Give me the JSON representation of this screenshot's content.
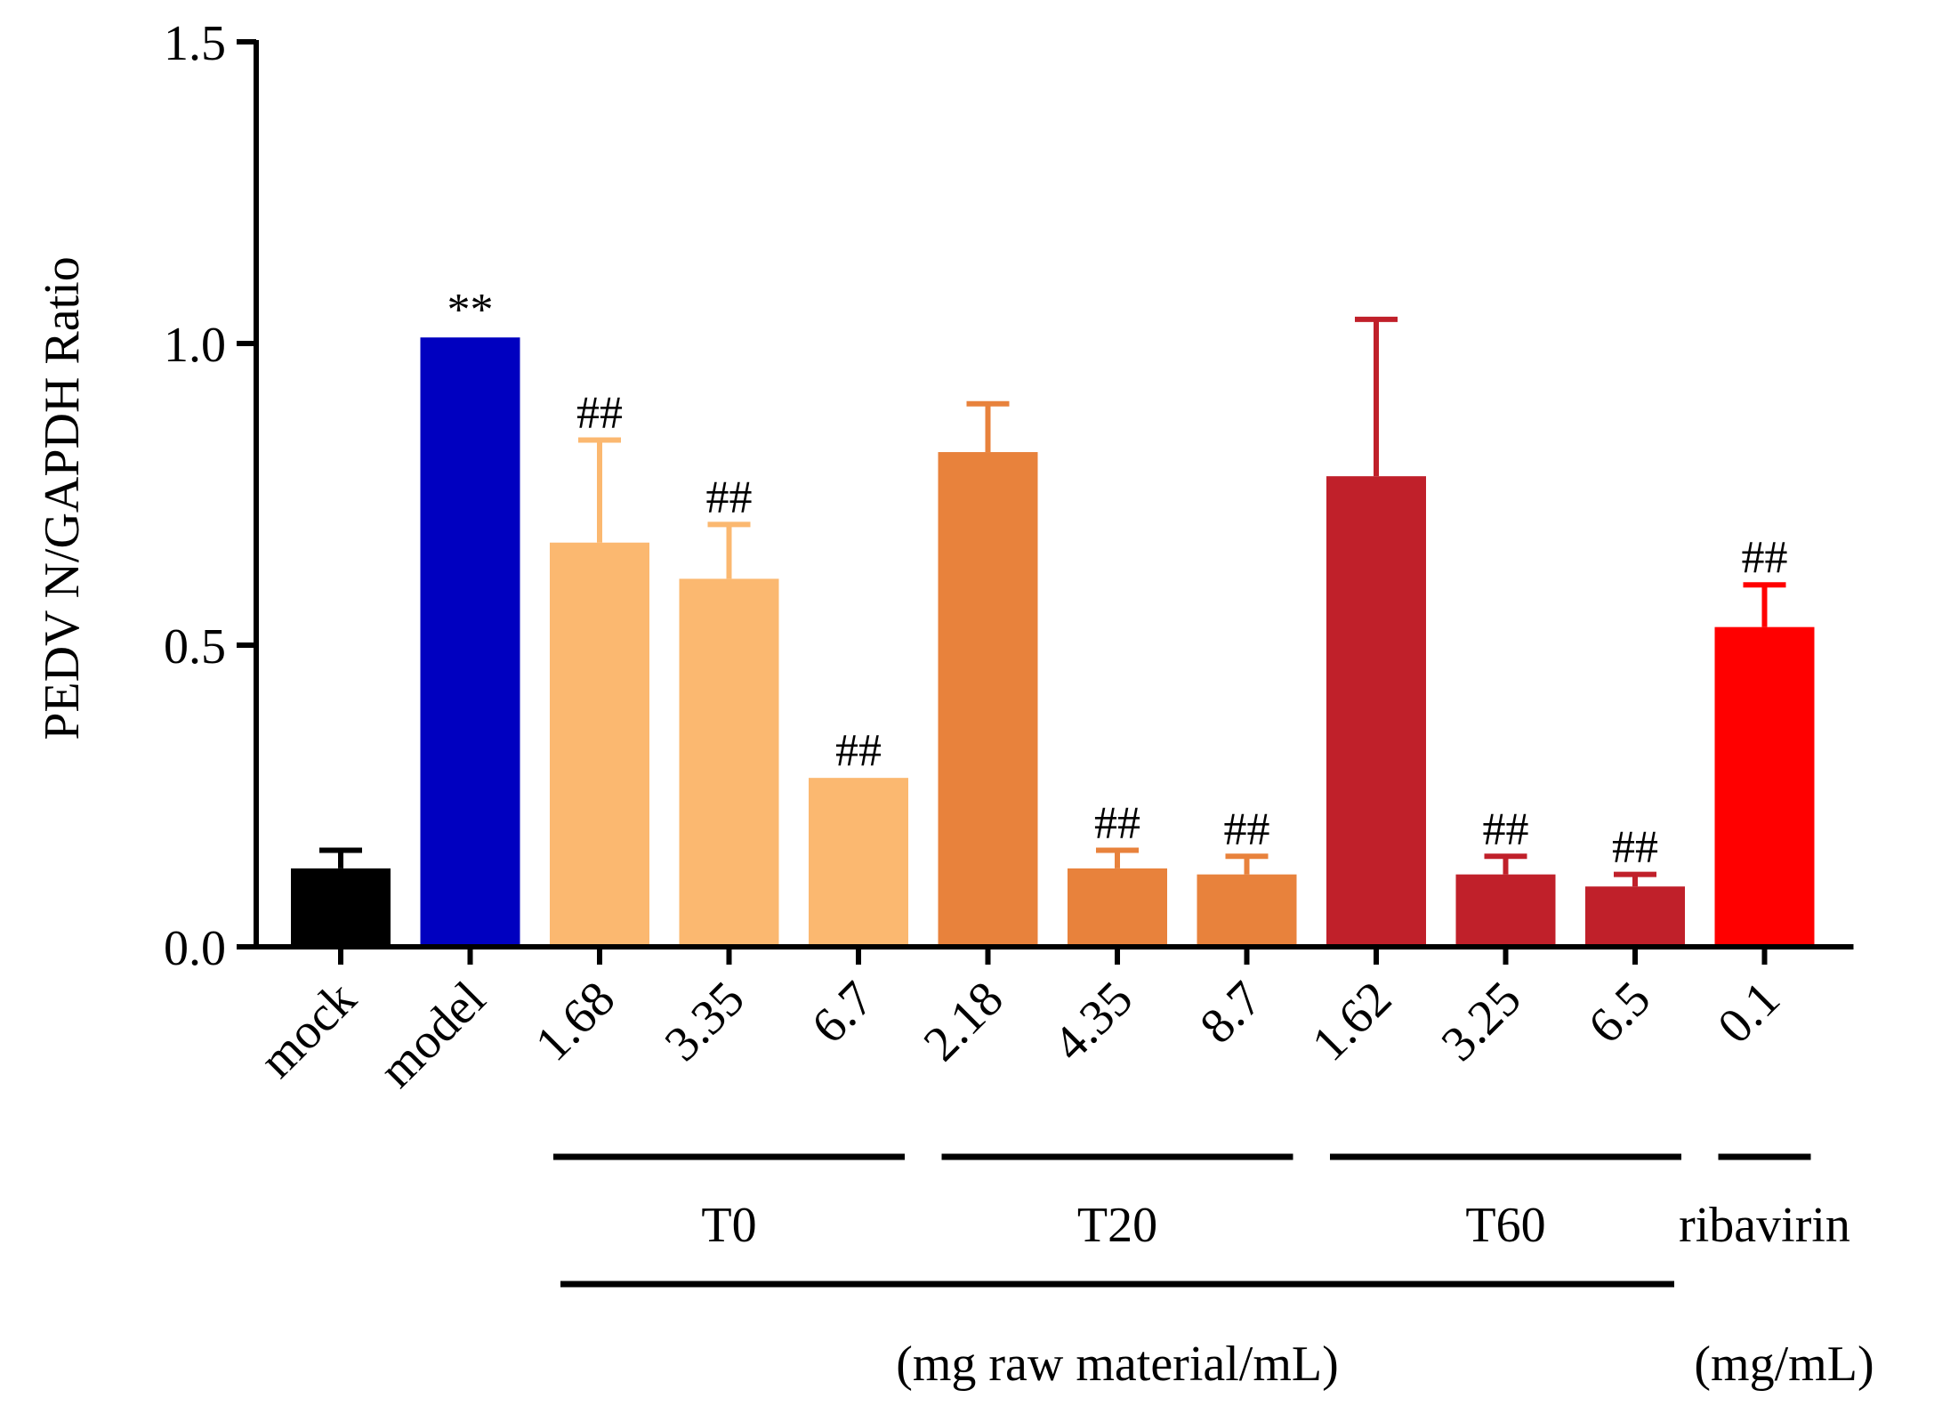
{
  "chart_data": {
    "type": "bar",
    "ylabel": "PEDV N/GAPDH Ratio",
    "ylim": [
      0,
      1.5
    ],
    "yticks": [
      "0.0",
      "0.5",
      "1.0",
      "1.5"
    ],
    "yticks_values": [
      0,
      0.5,
      1.0,
      1.5
    ],
    "categories": [
      "mock",
      "model",
      "1.68",
      "3.35",
      "6.7",
      "2.18",
      "4.35",
      "8.7",
      "1.62",
      "3.25",
      "6.5",
      "0.1"
    ],
    "values": [
      0.13,
      1.01,
      0.67,
      0.61,
      0.28,
      0.82,
      0.13,
      0.12,
      0.78,
      0.12,
      0.1,
      0.53
    ],
    "error_upper": [
      0.16,
      1.01,
      0.84,
      0.7,
      0.28,
      0.9,
      0.16,
      0.15,
      1.04,
      0.15,
      0.12,
      0.6
    ],
    "colors": [
      "#000000",
      "#0000c0",
      "#fbb870",
      "#fbb870",
      "#fbb870",
      "#e8823c",
      "#e8823c",
      "#e8823c",
      "#c0202a",
      "#c0202a",
      "#c0202a",
      "#ff0000"
    ],
    "annotations": [
      "",
      "**",
      "##",
      "##",
      "##",
      "",
      "##",
      "##",
      "",
      "##",
      "##",
      "##"
    ],
    "groups": [
      {
        "label": "T0",
        "bars": [
          2,
          4
        ]
      },
      {
        "label": "T20",
        "bars": [
          5,
          7
        ]
      },
      {
        "label": "T60",
        "bars": [
          8,
          10
        ]
      },
      {
        "label": "ribavirin",
        "bars": [
          11,
          11
        ]
      }
    ],
    "units": [
      {
        "label": "(mg raw material/mL)",
        "bars": [
          2,
          10
        ]
      },
      {
        "label": "(mg/mL)",
        "bars": [
          11,
          11
        ]
      }
    ]
  }
}
